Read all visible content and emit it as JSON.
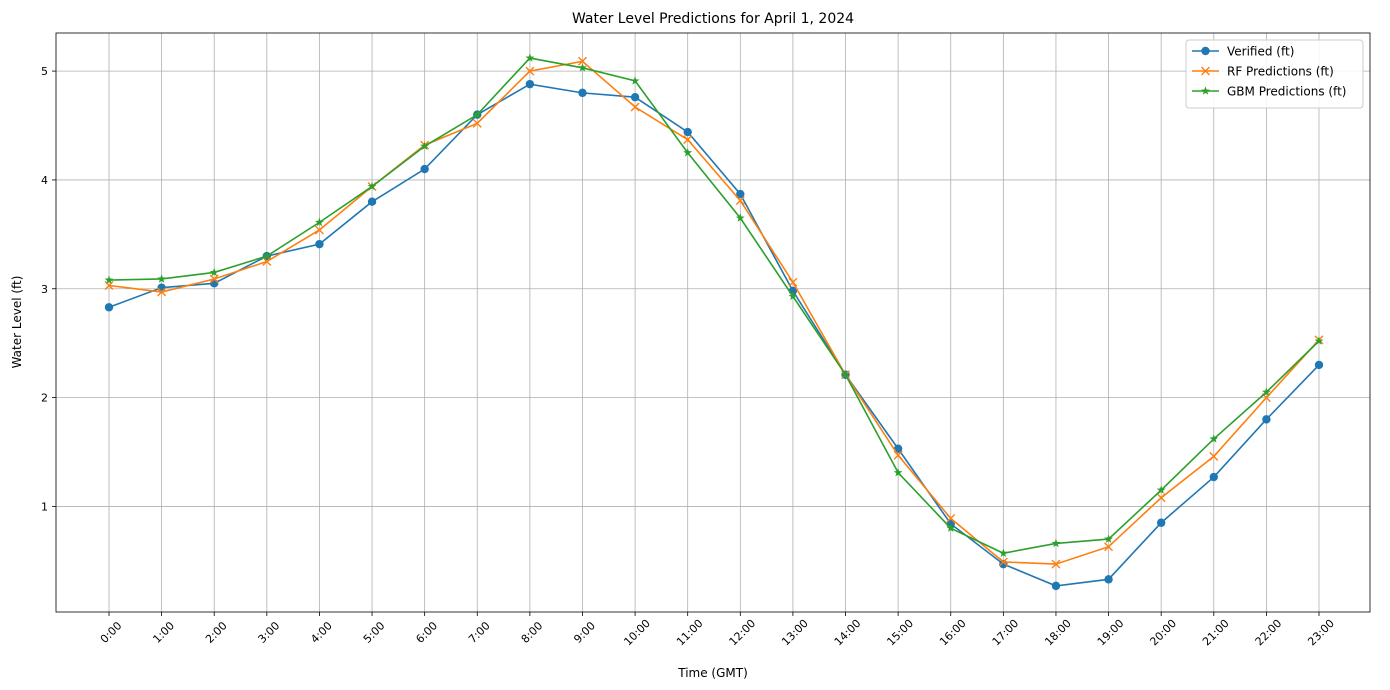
{
  "chart_data": {
    "type": "line",
    "title": "Water Level Predictions for April 1, 2024",
    "xlabel": "Time (GMT)",
    "ylabel": "Water Level (ft)",
    "ylim": [
      0.03,
      5.35
    ],
    "yticks": [
      1,
      2,
      3,
      4,
      5
    ],
    "grid": true,
    "legend_position": "top-right",
    "categories": [
      "0:00",
      "1:00",
      "2:00",
      "3:00",
      "4:00",
      "5:00",
      "6:00",
      "7:00",
      "8:00",
      "9:00",
      "10:00",
      "11:00",
      "12:00",
      "13:00",
      "14:00",
      "15:00",
      "16:00",
      "17:00",
      "18:00",
      "19:00",
      "20:00",
      "21:00",
      "22:00",
      "23:00"
    ],
    "series": [
      {
        "name": "Verified (ft)",
        "color": "#1f77b4",
        "marker": "circle",
        "values": [
          2.83,
          3.01,
          3.05,
          3.3,
          3.41,
          3.8,
          4.1,
          4.6,
          4.88,
          4.8,
          4.76,
          4.44,
          3.87,
          2.98,
          2.21,
          1.53,
          0.84,
          0.47,
          0.27,
          0.33,
          0.85,
          1.27,
          1.8,
          2.3
        ]
      },
      {
        "name": "RF Predictions (ft)",
        "color": "#ff7f0e",
        "marker": "x",
        "values": [
          3.03,
          2.97,
          3.09,
          3.25,
          3.54,
          3.94,
          4.32,
          4.52,
          5.0,
          5.09,
          4.67,
          4.37,
          3.81,
          3.06,
          2.21,
          1.47,
          0.89,
          0.49,
          0.47,
          0.63,
          1.08,
          1.46,
          2.0,
          2.53
        ]
      },
      {
        "name": "GBM Predictions (ft)",
        "color": "#2ca02c",
        "marker": "star",
        "values": [
          3.08,
          3.09,
          3.15,
          3.3,
          3.61,
          3.94,
          4.31,
          4.6,
          5.12,
          5.03,
          4.91,
          4.25,
          3.65,
          2.93,
          2.21,
          1.31,
          0.8,
          0.57,
          0.66,
          0.7,
          1.15,
          1.62,
          2.05,
          2.52
        ]
      }
    ]
  }
}
